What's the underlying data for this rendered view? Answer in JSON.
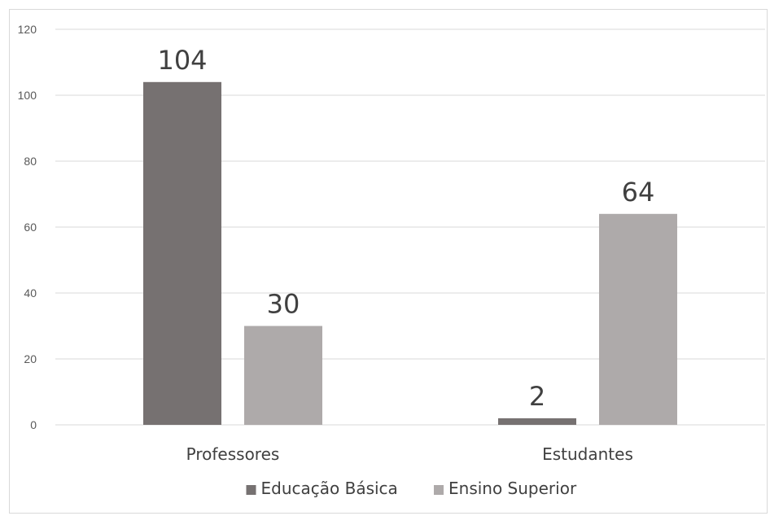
{
  "chart_data": {
    "type": "bar",
    "categories": [
      "Professores",
      "Estudantes"
    ],
    "series": [
      {
        "name": "Educação Básica",
        "values": [
          104,
          2
        ],
        "color": "#767171"
      },
      {
        "name": "Ensino Superior",
        "values": [
          30,
          64
        ],
        "color": "#aeaaaa"
      }
    ],
    "ylim": [
      0,
      120
    ],
    "yticks": [
      0,
      20,
      40,
      60,
      80,
      100,
      120
    ],
    "grid": true,
    "legend_position": "bottom",
    "data_labels": true
  }
}
